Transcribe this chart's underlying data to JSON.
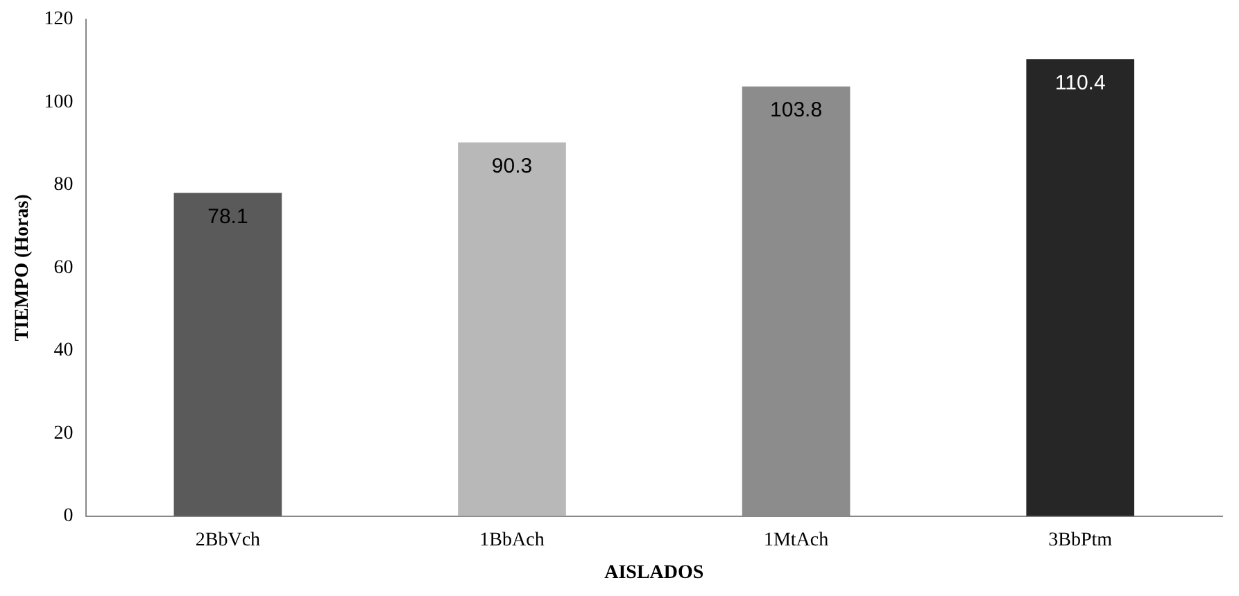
{
  "chart_data": {
    "type": "bar",
    "xlabel": "AISLADOS",
    "ylabel": "TIEMPO (Horas)",
    "categories": [
      "2BbVch",
      "1BbAch",
      "1MtAch",
      "3BbPtm"
    ],
    "values": [
      78.1,
      90.3,
      103.8,
      110.4
    ],
    "colors": [
      "#5a5a5a",
      "#b8b8b8",
      "#8c8c8c",
      "#262626"
    ],
    "ylim": [
      0,
      120
    ],
    "yticks": [
      0,
      20,
      40,
      60,
      80,
      100,
      120
    ],
    "grid": false,
    "legend": false,
    "data_labels": true
  }
}
